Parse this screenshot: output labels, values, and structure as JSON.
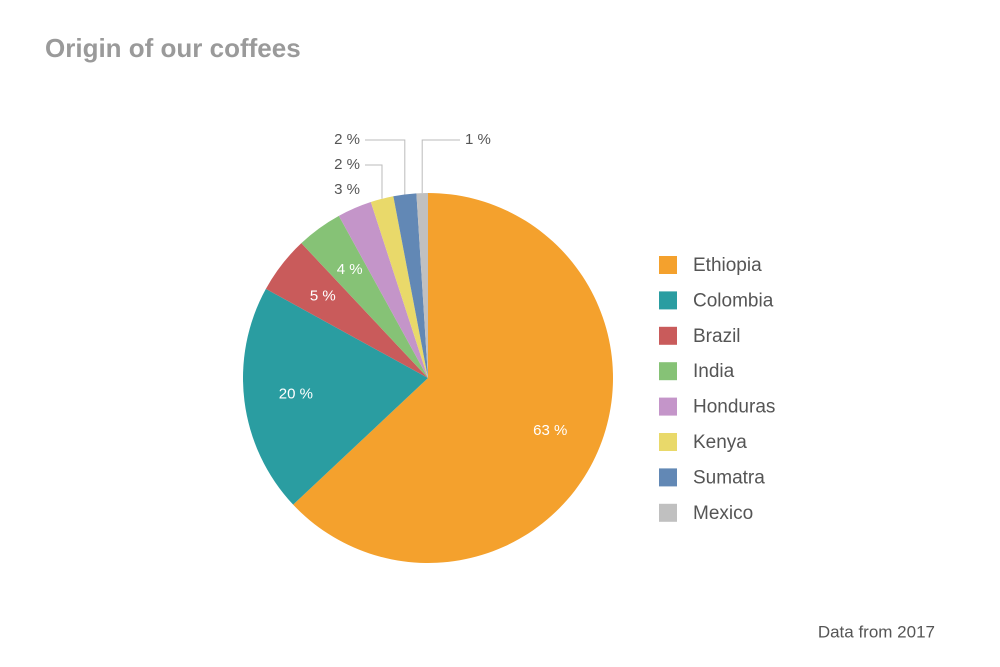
{
  "chart_data": {
    "type": "pie",
    "title": "Origin of our coffees",
    "caption": "Data from 2017",
    "categories": [
      "Ethiopia",
      "Colombia",
      "Brazil",
      "India",
      "Honduras",
      "Kenya",
      "Sumatra",
      "Mexico"
    ],
    "values": [
      63,
      20,
      5,
      4,
      3,
      2,
      2,
      1
    ],
    "value_labels": [
      "63 %",
      "20 %",
      "5 %",
      "4 %",
      "3 %",
      "2 %",
      "2 %",
      "1 %"
    ],
    "colors": [
      "#f4a12d",
      "#2a9da1",
      "#c95b5b",
      "#86c276",
      "#c495c9",
      "#e9d96a",
      "#6288b5",
      "#c0c0c0"
    ],
    "legend": "right"
  }
}
